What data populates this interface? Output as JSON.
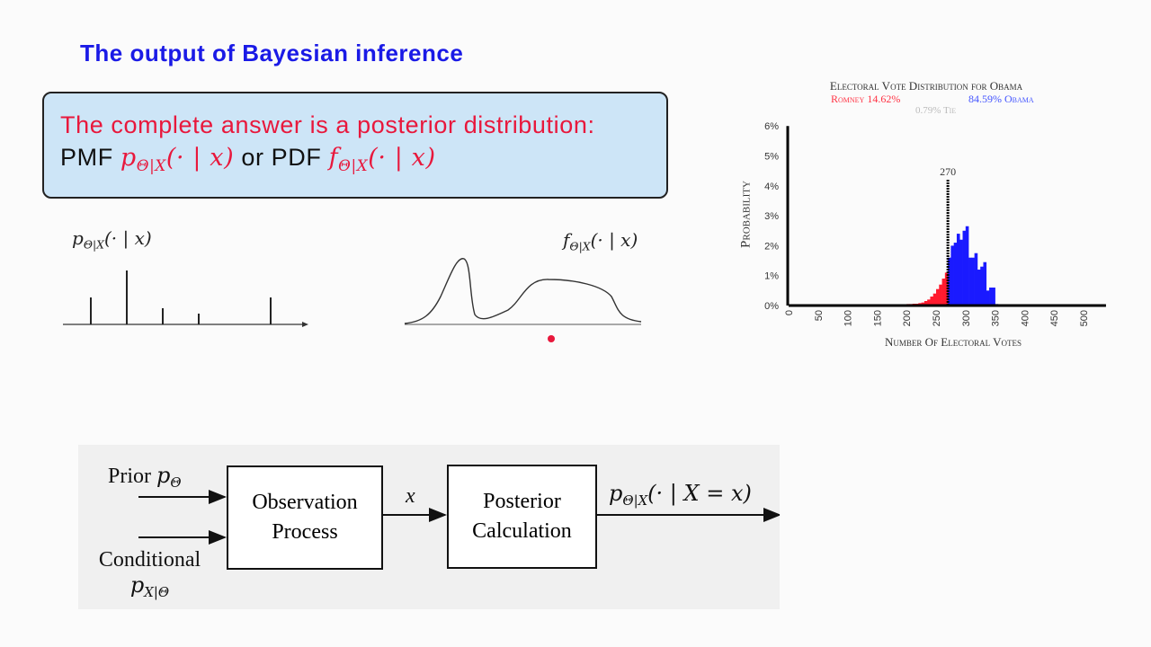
{
  "slide": {
    "title": "The output of Bayesian inference",
    "callout": {
      "line1": "The complete answer is a posterior distribution:",
      "pmf_label": "PMF",
      "pmf_symbol": "p",
      "pmf_sub": "Θ|X",
      "pmf_args": "(· | x)",
      "or": "or",
      "pdf_label": "PDF",
      "pdf_symbol": "f",
      "pdf_sub": "Θ|X",
      "pdf_args": "(· | x)"
    },
    "pmf_sketch": {
      "symbol": "p",
      "sub": "Θ|X",
      "args": "(· | x)",
      "stems": [
        0.5,
        1.0,
        0.3,
        0.2,
        0.5
      ]
    },
    "pdf_sketch": {
      "symbol": "f",
      "sub": "Θ|X",
      "args": "(· | x)"
    },
    "pointer_color": "#e8183c"
  },
  "diagram": {
    "prior_label": "Prior",
    "prior_symbol": "p",
    "prior_sub": "Θ",
    "conditional_label": "Conditional",
    "conditional_symbol": "p",
    "conditional_sub": "X|Θ",
    "block1": [
      "Observation",
      "Process"
    ],
    "mid_symbol": "x",
    "block2": [
      "Posterior",
      "Calculation"
    ],
    "output_symbol": "p",
    "output_sub": "Θ|X",
    "output_args": "(· | X = x)"
  },
  "chart_data": {
    "type": "bar",
    "title": "Electoral Vote Distribution for Obama",
    "legend": {
      "romney": "Romney 14.62%",
      "obama": "84.59% Obama",
      "tie": "0.79% Tie"
    },
    "xlabel": "Number Of Electoral Votes",
    "ylabel": "Probability",
    "xlim": [
      0,
      538
    ],
    "ylim": [
      0,
      6
    ],
    "xticks": [
      "0",
      "50",
      "100",
      "150",
      "200",
      "250",
      "300",
      "350",
      "400",
      "450",
      "500"
    ],
    "yticks": [
      "0%",
      "1%",
      "2%",
      "3%",
      "4%",
      "5%",
      "6%"
    ],
    "threshold": {
      "value": 270,
      "label": "270"
    },
    "colors": {
      "romney": "#ff1a2e",
      "obama": "#1a1aff",
      "tie": "#bbbbbb",
      "threshold": "#000000"
    },
    "bins_x": [
      200,
      205,
      210,
      215,
      220,
      225,
      230,
      235,
      240,
      245,
      250,
      255,
      260,
      265,
      270,
      275,
      280,
      285,
      290,
      295,
      300,
      305,
      310,
      315,
      320,
      325,
      330,
      335,
      340,
      345,
      350
    ],
    "values": [
      0.05,
      0.05,
      0.06,
      0.06,
      0.08,
      0.1,
      0.15,
      0.2,
      0.3,
      0.4,
      0.55,
      0.7,
      0.9,
      1.1,
      1.6,
      2.0,
      2.1,
      2.4,
      2.2,
      2.5,
      2.65,
      1.6,
      1.6,
      1.75,
      1.2,
      1.3,
      1.45,
      0.5,
      0.6,
      0.6,
      0.05
    ]
  }
}
